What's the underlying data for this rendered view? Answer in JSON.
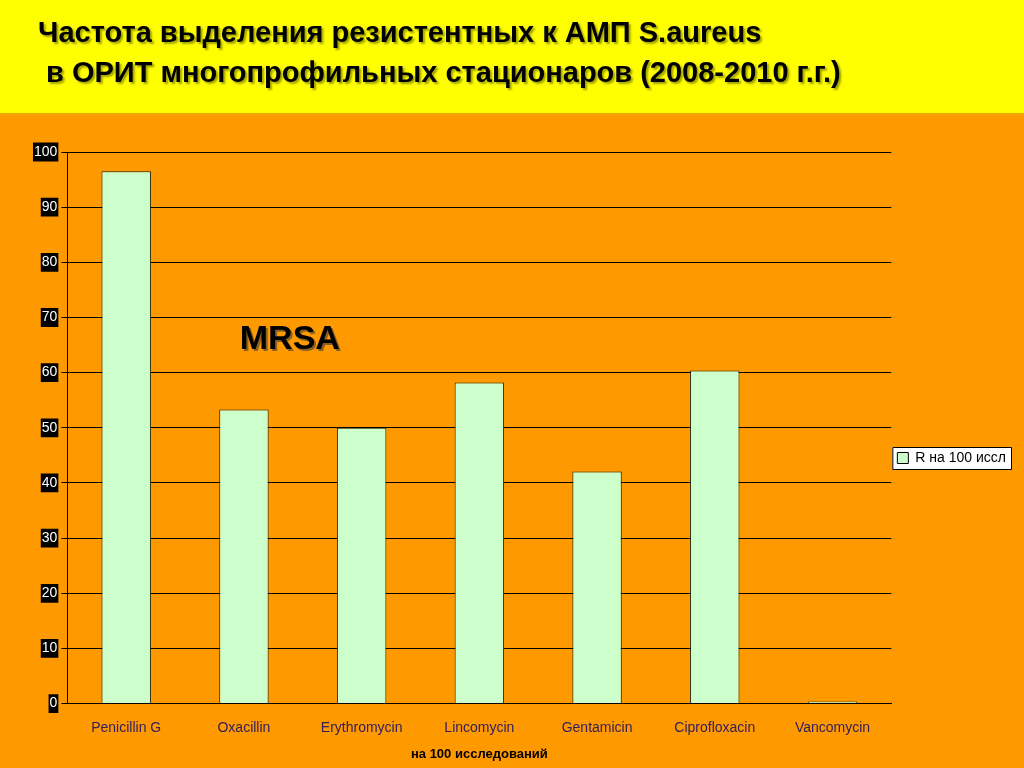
{
  "chart_data": {
    "type": "bar",
    "title": "Частота выделения резистентных к АМП S.aureus\n в ОРИТ многопрофильных стационаров (2008-2010 г.г.)",
    "xlabel": "на 100 исследований",
    "categories": [
      "Penicillin G",
      "Oxacillin",
      "Erythromycin",
      "Lincomycin",
      "Gentamicin",
      "Ciprofloxacin",
      "Vancomycin"
    ],
    "series": [
      {
        "name": "R на 100 иссл",
        "color": "#ccffcc",
        "values": [
          96.5,
          53.3,
          50,
          58.2,
          42.1,
          60.4,
          0
        ]
      }
    ],
    "ylim": [
      0,
      100
    ],
    "yticks": [
      0,
      10,
      20,
      30,
      40,
      50,
      60,
      70,
      80,
      90,
      100
    ],
    "grid": "y",
    "legend": "right",
    "annotations": [
      "MRSA"
    ]
  }
}
